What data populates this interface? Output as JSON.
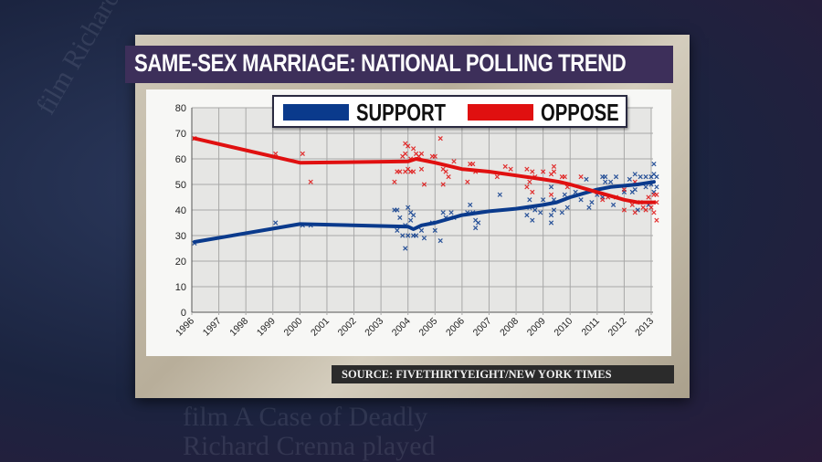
{
  "title": "SAME-SEX MARRIAGE: NATIONAL POLLING TREND",
  "source": "SOURCE: FIVETHIRTYEIGHT/NEW YORK TIMES",
  "chart_data": {
    "type": "line",
    "ylim": [
      0,
      80
    ],
    "yticks": [
      0,
      10,
      20,
      30,
      40,
      50,
      60,
      70,
      80
    ],
    "xticks": [
      "1996",
      "1997",
      "1998",
      "1999",
      "2000",
      "2001",
      "2002",
      "2003",
      "2004",
      "2005",
      "2006",
      "2007",
      "2008",
      "2009",
      "2010",
      "2011",
      "2012",
      "2013"
    ],
    "xlim": [
      1996,
      2013
    ],
    "grid": true,
    "legend_placement": "top-center",
    "series": [
      {
        "name": "SUPPORT",
        "color": "#0a3a8c",
        "trend": [
          [
            1996.1,
            27.5
          ],
          [
            2000,
            34.5
          ],
          [
            2004,
            33.5
          ],
          [
            2004.2,
            32.5
          ],
          [
            2004.5,
            34
          ],
          [
            2005,
            35
          ],
          [
            2006,
            38
          ],
          [
            2007,
            39.5
          ],
          [
            2008,
            40.5
          ],
          [
            2009,
            42
          ],
          [
            2009.5,
            43
          ],
          [
            2010,
            45
          ],
          [
            2011,
            48
          ],
          [
            2011.5,
            49
          ],
          [
            2012,
            49.5
          ],
          [
            2012.5,
            50
          ],
          [
            2013.1,
            51
          ]
        ],
        "polls": [
          [
            1996.1,
            27
          ],
          [
            1999.1,
            35
          ],
          [
            2000.1,
            34
          ],
          [
            2000.4,
            34
          ],
          [
            2003.5,
            40
          ],
          [
            2003.6,
            40
          ],
          [
            2003.6,
            32
          ],
          [
            2003.7,
            37
          ],
          [
            2003.8,
            30
          ],
          [
            2003.9,
            25
          ],
          [
            2003.9,
            34
          ],
          [
            2004,
            30
          ],
          [
            2004,
            41
          ],
          [
            2004.1,
            39
          ],
          [
            2004.1,
            36
          ],
          [
            2004.2,
            30
          ],
          [
            2004.2,
            38
          ],
          [
            2004.3,
            30
          ],
          [
            2004.5,
            32
          ],
          [
            2004.6,
            29
          ],
          [
            2004.9,
            35
          ],
          [
            2005,
            32
          ],
          [
            2005.2,
            28
          ],
          [
            2005.3,
            39
          ],
          [
            2005.4,
            37
          ],
          [
            2005.6,
            39
          ],
          [
            2005.7,
            37
          ],
          [
            2006.2,
            39
          ],
          [
            2006.3,
            42
          ],
          [
            2006.4,
            39
          ],
          [
            2006.5,
            36
          ],
          [
            2006.5,
            33
          ],
          [
            2006.6,
            35
          ],
          [
            2007.4,
            46
          ],
          [
            2008.4,
            38
          ],
          [
            2008.5,
            44
          ],
          [
            2008.5,
            41
          ],
          [
            2008.6,
            36
          ],
          [
            2008.7,
            40
          ],
          [
            2008.9,
            39
          ],
          [
            2009,
            44
          ],
          [
            2009.3,
            35
          ],
          [
            2009.3,
            49
          ],
          [
            2009.3,
            38
          ],
          [
            2009.4,
            44
          ],
          [
            2009.4,
            40
          ],
          [
            2009.7,
            39
          ],
          [
            2009.8,
            46
          ],
          [
            2009.9,
            41
          ],
          [
            2010.2,
            47
          ],
          [
            2010.4,
            44
          ],
          [
            2010.6,
            52
          ],
          [
            2010.7,
            41
          ],
          [
            2010.8,
            43
          ],
          [
            2011,
            46
          ],
          [
            2011.2,
            45
          ],
          [
            2011.2,
            53
          ],
          [
            2011.3,
            51
          ],
          [
            2011.3,
            53
          ],
          [
            2011.5,
            51
          ],
          [
            2011.6,
            42
          ],
          [
            2011.7,
            53
          ],
          [
            2012,
            47
          ],
          [
            2012.2,
            52
          ],
          [
            2012.3,
            47
          ],
          [
            2012.4,
            54
          ],
          [
            2012.4,
            48
          ],
          [
            2012.5,
            40
          ],
          [
            2012.6,
            53
          ],
          [
            2012.8,
            53
          ],
          [
            2012.8,
            49
          ],
          [
            2012.9,
            42
          ],
          [
            2013,
            53
          ],
          [
            2013,
            50
          ],
          [
            2013.1,
            54
          ],
          [
            2013.1,
            58
          ],
          [
            2013.1,
            47
          ],
          [
            2013.2,
            49
          ],
          [
            2013.2,
            53
          ]
        ]
      },
      {
        "name": "OPPOSE",
        "color": "#e01010",
        "trend": [
          [
            1996.1,
            68
          ],
          [
            2000,
            58.5
          ],
          [
            2004,
            59
          ],
          [
            2004.3,
            60
          ],
          [
            2005,
            58.5
          ],
          [
            2006,
            56
          ],
          [
            2007,
            55
          ],
          [
            2008,
            53.5
          ],
          [
            2009,
            52
          ],
          [
            2009.6,
            51
          ],
          [
            2010,
            50
          ],
          [
            2011,
            47
          ],
          [
            2011.5,
            45.5
          ],
          [
            2012,
            44
          ],
          [
            2012.5,
            43
          ],
          [
            2013.1,
            43
          ]
        ],
        "polls": [
          [
            1996.1,
            68
          ],
          [
            1999.1,
            62
          ],
          [
            2000.1,
            62
          ],
          [
            2000.4,
            51
          ],
          [
            2003.5,
            51
          ],
          [
            2003.6,
            55
          ],
          [
            2003.7,
            55
          ],
          [
            2003.8,
            61
          ],
          [
            2003.9,
            62
          ],
          [
            2003.9,
            66
          ],
          [
            2003.9,
            55
          ],
          [
            2004,
            65
          ],
          [
            2004,
            56
          ],
          [
            2004.1,
            60
          ],
          [
            2004.1,
            55
          ],
          [
            2004.2,
            64
          ],
          [
            2004.2,
            55
          ],
          [
            2004.3,
            62
          ],
          [
            2004.4,
            61
          ],
          [
            2004.5,
            62
          ],
          [
            2004.5,
            56
          ],
          [
            2004.6,
            50
          ],
          [
            2004.9,
            61
          ],
          [
            2005,
            61
          ],
          [
            2005.2,
            68
          ],
          [
            2005.3,
            56
          ],
          [
            2005.3,
            50
          ],
          [
            2005.4,
            55
          ],
          [
            2005.5,
            53
          ],
          [
            2005.7,
            59
          ],
          [
            2006.2,
            51
          ],
          [
            2006.3,
            58
          ],
          [
            2006.4,
            58
          ],
          [
            2006.5,
            55
          ],
          [
            2007.3,
            53
          ],
          [
            2007.6,
            57
          ],
          [
            2007.8,
            56
          ],
          [
            2008.4,
            56
          ],
          [
            2008.4,
            49
          ],
          [
            2008.5,
            51
          ],
          [
            2008.6,
            55
          ],
          [
            2008.6,
            47
          ],
          [
            2008.7,
            53
          ],
          [
            2009,
            55
          ],
          [
            2009.3,
            46
          ],
          [
            2009.3,
            54
          ],
          [
            2009.4,
            55
          ],
          [
            2009.4,
            57
          ],
          [
            2009.7,
            53
          ],
          [
            2009.8,
            53
          ],
          [
            2009.9,
            49
          ],
          [
            2010.4,
            53
          ],
          [
            2011,
            47
          ],
          [
            2011.2,
            44
          ],
          [
            2011.4,
            45
          ],
          [
            2011.7,
            45
          ],
          [
            2012,
            48
          ],
          [
            2012,
            40
          ],
          [
            2012.3,
            42
          ],
          [
            2012.4,
            51
          ],
          [
            2012.4,
            39
          ],
          [
            2012.6,
            43
          ],
          [
            2012.7,
            41
          ],
          [
            2012.8,
            40
          ],
          [
            2012.9,
            45
          ],
          [
            2013,
            41
          ],
          [
            2013.1,
            39
          ],
          [
            2013.1,
            46
          ],
          [
            2013.2,
            36
          ],
          [
            2013.2,
            43
          ],
          [
            2013.2,
            46
          ]
        ]
      }
    ]
  }
}
